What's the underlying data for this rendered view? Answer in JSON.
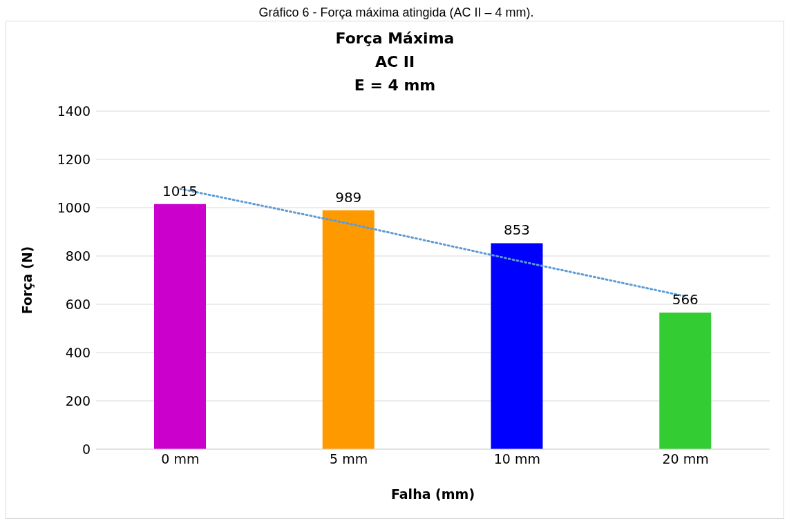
{
  "chart_data": {
    "type": "bar",
    "title": "Força Máxima\nAC II\nE = 4 mm",
    "xlabel": "Falha (mm)",
    "ylabel": "Força (N)",
    "annotations": [
      "Gráfico 6 - Força máxima atingida (AC II – 4 mm)."
    ],
    "categories": [
      "0 mm",
      "5 mm",
      "10 mm",
      "20 mm"
    ],
    "series": [
      {
        "values": [
          1015,
          989,
          853,
          566
        ],
        "value_labels": [
          "1015",
          "989",
          "853",
          "566"
        ],
        "colors": [
          "#cc00cc",
          "#ff9900",
          "#0000ff",
          "#33cc33"
        ]
      },
      {
        "type": "line",
        "values": [
          1078,
          934,
          781,
          633
        ],
        "color": "#5b9bd5",
        "line_style": "dotted",
        "marker": "none"
      }
    ],
    "ylim": [
      0,
      1400
    ],
    "yticks": [
      0,
      200,
      400,
      600,
      800,
      1000,
      1200,
      1400
    ],
    "grid": "y"
  }
}
